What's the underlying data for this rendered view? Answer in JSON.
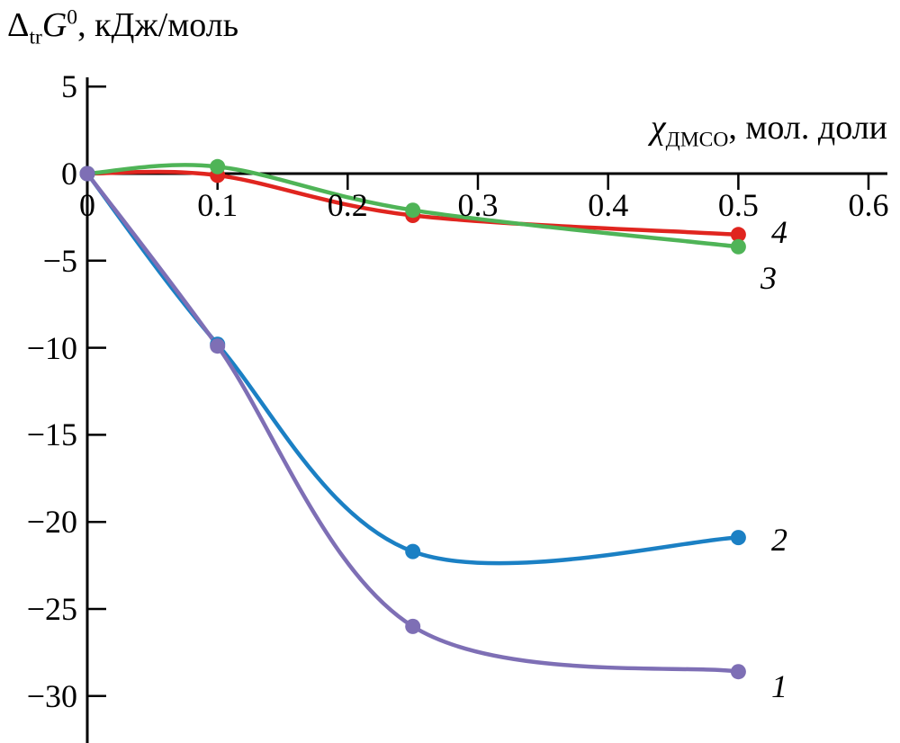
{
  "labels": {
    "y_title": {
      "delta": "Δ",
      "sub": "tr",
      "symbol": "G",
      "sup": "0",
      "rest": ", кДж/моль"
    },
    "x_title": {
      "chi": "χ",
      "sub": "ДМСО",
      "rest": ", мол. доли"
    }
  },
  "tick_labels": {
    "y": [
      "5",
      "0",
      "−5",
      "−10",
      "−15",
      "−20",
      "−25",
      "−30"
    ],
    "x": [
      "0",
      "0.1",
      "0.2",
      "0.3",
      "0.4",
      "0.5",
      "0.6"
    ]
  },
  "chart_data": {
    "type": "line",
    "title": "",
    "ylabel": "Δ_tr G^0, кДж/моль",
    "xlabel": "χ_ДМСО, мол. доли",
    "x": [
      0,
      0.1,
      0.25,
      0.5
    ],
    "xlim": [
      0,
      0.6
    ],
    "ylim": [
      -30,
      5
    ],
    "xticks": [
      0,
      0.1,
      0.2,
      0.3,
      0.4,
      0.5,
      0.6
    ],
    "yticks": [
      5,
      0,
      -5,
      -10,
      -15,
      -20,
      -25,
      -30
    ],
    "grid": false,
    "marker": "filled-circle",
    "legend": "curve numbers 1-4 at right ends of lines",
    "series": [
      {
        "name": "1",
        "color": "#7e6fb5",
        "values": [
          0,
          -9.9,
          -26.0,
          -28.6
        ]
      },
      {
        "name": "2",
        "color": "#1b80c4",
        "values": [
          0,
          -9.8,
          -21.7,
          -20.9
        ]
      },
      {
        "name": "3",
        "color": "#4fb457",
        "values": [
          0,
          0.4,
          -2.1,
          -4.2
        ]
      },
      {
        "name": "4",
        "color": "#e0251f",
        "values": [
          0,
          -0.1,
          -2.4,
          -3.5
        ]
      }
    ]
  },
  "colors": {
    "axis": "#000000",
    "text": "#000000",
    "background": "#ffffff"
  }
}
